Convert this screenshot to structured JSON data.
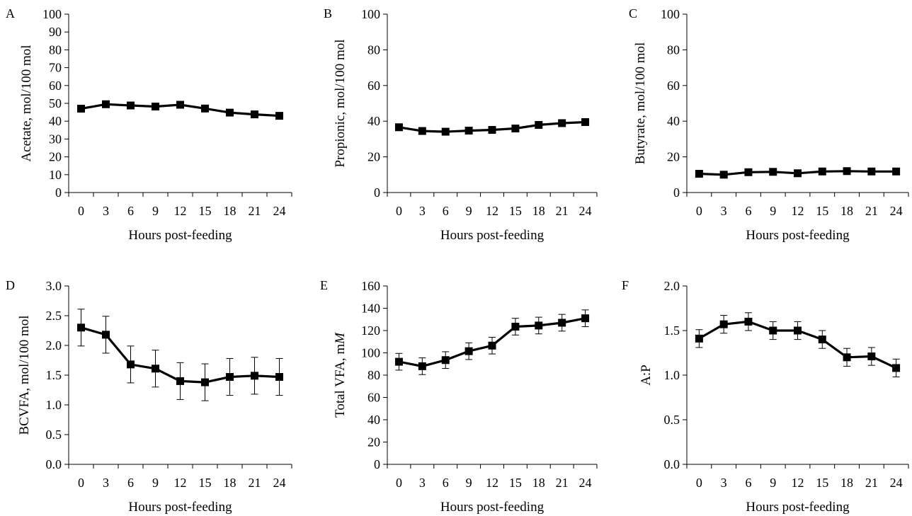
{
  "chart_data": [
    {
      "type": "line",
      "panel": "A",
      "xlabel": "Hours post-feeding",
      "ylabel": "Acetate, mol/100 mol",
      "ylabel_italic": "",
      "categories": [
        "0",
        "3",
        "6",
        "9",
        "12",
        "15",
        "18",
        "21",
        "24"
      ],
      "ylim": [
        0,
        100
      ],
      "yticks": [
        "0",
        "10",
        "20",
        "30",
        "40",
        "50",
        "60",
        "70",
        "80",
        "90",
        "100"
      ],
      "error_bars": false,
      "grid": false,
      "series": [
        {
          "values": [
            47,
            49.5,
            48.8,
            48.2,
            49.2,
            47.1,
            44.8,
            43.8,
            43
          ]
        }
      ]
    },
    {
      "type": "line",
      "panel": "B",
      "xlabel": "Hours post-feeding",
      "ylabel": "Propionic, mol/100 mol",
      "ylabel_italic": "",
      "categories": [
        "0",
        "3",
        "6",
        "9",
        "12",
        "15",
        "18",
        "21",
        "24"
      ],
      "ylim": [
        0,
        100
      ],
      "yticks": [
        "0",
        "20",
        "40",
        "60",
        "80",
        "100"
      ],
      "error_bars": false,
      "grid": false,
      "series": [
        {
          "values": [
            36.6,
            34.5,
            34.1,
            34.7,
            35.1,
            35.9,
            37.9,
            38.9,
            39.5
          ]
        }
      ]
    },
    {
      "type": "line",
      "panel": "C",
      "xlabel": "Hours post-feeding",
      "ylabel": "Butyrate, mol/100 mol",
      "ylabel_italic": "",
      "categories": [
        "0",
        "3",
        "6",
        "9",
        "12",
        "15",
        "18",
        "21",
        "24"
      ],
      "ylim": [
        0,
        100
      ],
      "yticks": [
        "0",
        "20",
        "40",
        "60",
        "80",
        "100"
      ],
      "error_bars": false,
      "grid": false,
      "series": [
        {
          "values": [
            10.5,
            10.0,
            11.4,
            11.6,
            10.8,
            11.8,
            12.0,
            11.8,
            11.8
          ]
        }
      ]
    },
    {
      "type": "line",
      "panel": "D",
      "xlabel": "Hours post-feeding",
      "ylabel": "BCVFA, mol/100 mol",
      "ylabel_italic": "",
      "categories": [
        "0",
        "3",
        "6",
        "9",
        "12",
        "15",
        "18",
        "21",
        "24"
      ],
      "ylim": [
        0,
        3
      ],
      "yticks": [
        "0.0",
        "0.5",
        "1.0",
        "1.5",
        "2.0",
        "2.5",
        "3.0"
      ],
      "error_bars": true,
      "grid": false,
      "series": [
        {
          "values": [
            2.3,
            2.18,
            1.68,
            1.61,
            1.4,
            1.38,
            1.47,
            1.49,
            1.47
          ],
          "errors": [
            0.31,
            0.31,
            0.31,
            0.31,
            0.31,
            0.31,
            0.31,
            0.31,
            0.31
          ]
        }
      ]
    },
    {
      "type": "line",
      "panel": "E",
      "xlabel": "Hours post-feeding",
      "ylabel": "Total VFA, m",
      "ylabel_italic": "M",
      "categories": [
        "0",
        "3",
        "6",
        "9",
        "12",
        "15",
        "18",
        "21",
        "24"
      ],
      "ylim": [
        0,
        160
      ],
      "yticks": [
        "0",
        "20",
        "40",
        "60",
        "80",
        "100",
        "120",
        "140",
        "160"
      ],
      "error_bars": true,
      "grid": false,
      "series": [
        {
          "values": [
            92,
            88,
            93.5,
            101.5,
            106.5,
            123.5,
            124.5,
            127,
            131
          ],
          "errors": [
            7.5,
            7.5,
            7.5,
            7.5,
            7.5,
            7.5,
            7.5,
            7.5,
            7.5
          ]
        }
      ]
    },
    {
      "type": "line",
      "panel": "F",
      "xlabel": "Hours post-feeding",
      "ylabel": "A:P",
      "ylabel_italic": "",
      "categories": [
        "0",
        "3",
        "6",
        "9",
        "12",
        "15",
        "18",
        "21",
        "24"
      ],
      "ylim": [
        0,
        2
      ],
      "yticks": [
        "0.0",
        "0.5",
        "1.0",
        "1.5",
        "2.0"
      ],
      "error_bars": true,
      "grid": false,
      "series": [
        {
          "values": [
            1.41,
            1.57,
            1.6,
            1.5,
            1.5,
            1.4,
            1.2,
            1.21,
            1.08
          ],
          "errors": [
            0.1,
            0.1,
            0.1,
            0.1,
            0.1,
            0.1,
            0.1,
            0.1,
            0.1
          ]
        }
      ]
    }
  ],
  "style": {
    "line_color": "#000000",
    "marker": "square"
  }
}
